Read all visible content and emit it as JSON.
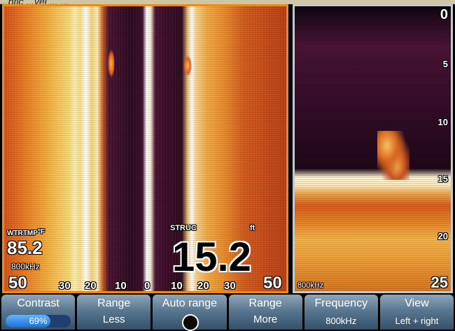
{
  "caption": "...ptic ...vel ... ...",
  "sidescan": {
    "water_temp_label": "WTRTMP",
    "water_temp_unit": "°F",
    "water_temp": "85.2",
    "frequency": "800kHz",
    "range_left": "50",
    "range_right": "50",
    "ticks": [
      "30",
      "20",
      "10",
      "0",
      "10",
      "20",
      "30"
    ],
    "depth_label": "STRUC",
    "depth_unit": "ft",
    "depth": "15.2"
  },
  "downscan": {
    "depth_scale": [
      "0",
      "5",
      "10",
      "15",
      "20",
      "25"
    ],
    "frequency": "800kHz"
  },
  "softkeys": [
    {
      "top": "Contrast",
      "bottom": "69%",
      "meter_fraction": 0.69
    },
    {
      "top": "Range",
      "bottom": "Less"
    },
    {
      "top": "Auto range"
    },
    {
      "top": "Range",
      "bottom": "More"
    },
    {
      "top": "Frequency",
      "bottom": "800kHz"
    },
    {
      "top": "View",
      "bottom": "Left + right"
    }
  ]
}
